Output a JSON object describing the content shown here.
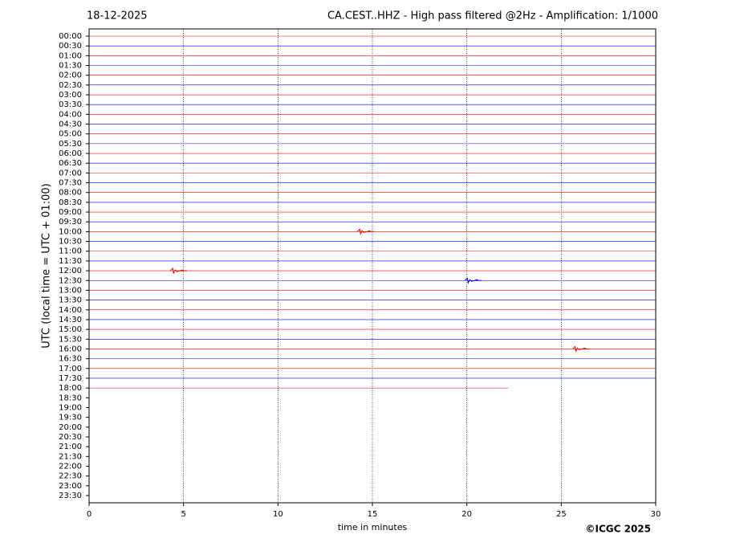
{
  "chart_data": {
    "type": "helicorder",
    "title": "CA.CEST..HHZ - High pass filtered @2Hz - Amplification: 1/1000",
    "date": "18-12-2025",
    "y_label": "UTC (local time = UTC + 01:00)",
    "x_label": "time in minutes",
    "copyright": "©ICGC 2025",
    "xlim": [
      0,
      30
    ],
    "xticks": [
      0,
      5,
      10,
      15,
      20,
      25,
      30
    ],
    "grid": true,
    "colors": [
      "#ff0000",
      "#0000ff"
    ],
    "rows": [
      {
        "label": "00:00",
        "end": 30
      },
      {
        "label": "00:30",
        "end": 30
      },
      {
        "label": "01:00",
        "end": 30
      },
      {
        "label": "01:30",
        "end": 30
      },
      {
        "label": "02:00",
        "end": 30
      },
      {
        "label": "02:30",
        "end": 30
      },
      {
        "label": "03:00",
        "end": 30
      },
      {
        "label": "03:30",
        "end": 30
      },
      {
        "label": "04:00",
        "end": 30
      },
      {
        "label": "04:30",
        "end": 30
      },
      {
        "label": "05:00",
        "end": 30
      },
      {
        "label": "05:30",
        "end": 30
      },
      {
        "label": "06:00",
        "end": 30
      },
      {
        "label": "06:30",
        "end": 30
      },
      {
        "label": "07:00",
        "end": 30
      },
      {
        "label": "07:30",
        "end": 30
      },
      {
        "label": "08:00",
        "end": 30
      },
      {
        "label": "08:30",
        "end": 30
      },
      {
        "label": "09:00",
        "end": 30
      },
      {
        "label": "09:30",
        "end": 30
      },
      {
        "label": "10:00",
        "end": 30,
        "events": [
          14.2
        ]
      },
      {
        "label": "10:30",
        "end": 30
      },
      {
        "label": "11:00",
        "end": 30
      },
      {
        "label": "11:30",
        "end": 30
      },
      {
        "label": "12:00",
        "end": 30,
        "events": [
          4.3
        ]
      },
      {
        "label": "12:30",
        "end": 30,
        "events": [
          19.9
        ]
      },
      {
        "label": "13:00",
        "end": 30
      },
      {
        "label": "13:30",
        "end": 30
      },
      {
        "label": "14:00",
        "end": 30
      },
      {
        "label": "14:30",
        "end": 30
      },
      {
        "label": "15:00",
        "end": 30
      },
      {
        "label": "15:30",
        "end": 30
      },
      {
        "label": "16:00",
        "end": 30,
        "events": [
          25.6
        ]
      },
      {
        "label": "16:30",
        "end": 30
      },
      {
        "label": "17:00",
        "end": 30
      },
      {
        "label": "17:30",
        "end": 30
      },
      {
        "label": "18:00",
        "end": 22.2
      },
      {
        "label": "18:30"
      },
      {
        "label": "19:00"
      },
      {
        "label": "19:30"
      },
      {
        "label": "20:00"
      },
      {
        "label": "20:30"
      },
      {
        "label": "21:00"
      },
      {
        "label": "21:30"
      },
      {
        "label": "22:00"
      },
      {
        "label": "22:30"
      },
      {
        "label": "23:00"
      },
      {
        "label": "23:30"
      }
    ]
  }
}
